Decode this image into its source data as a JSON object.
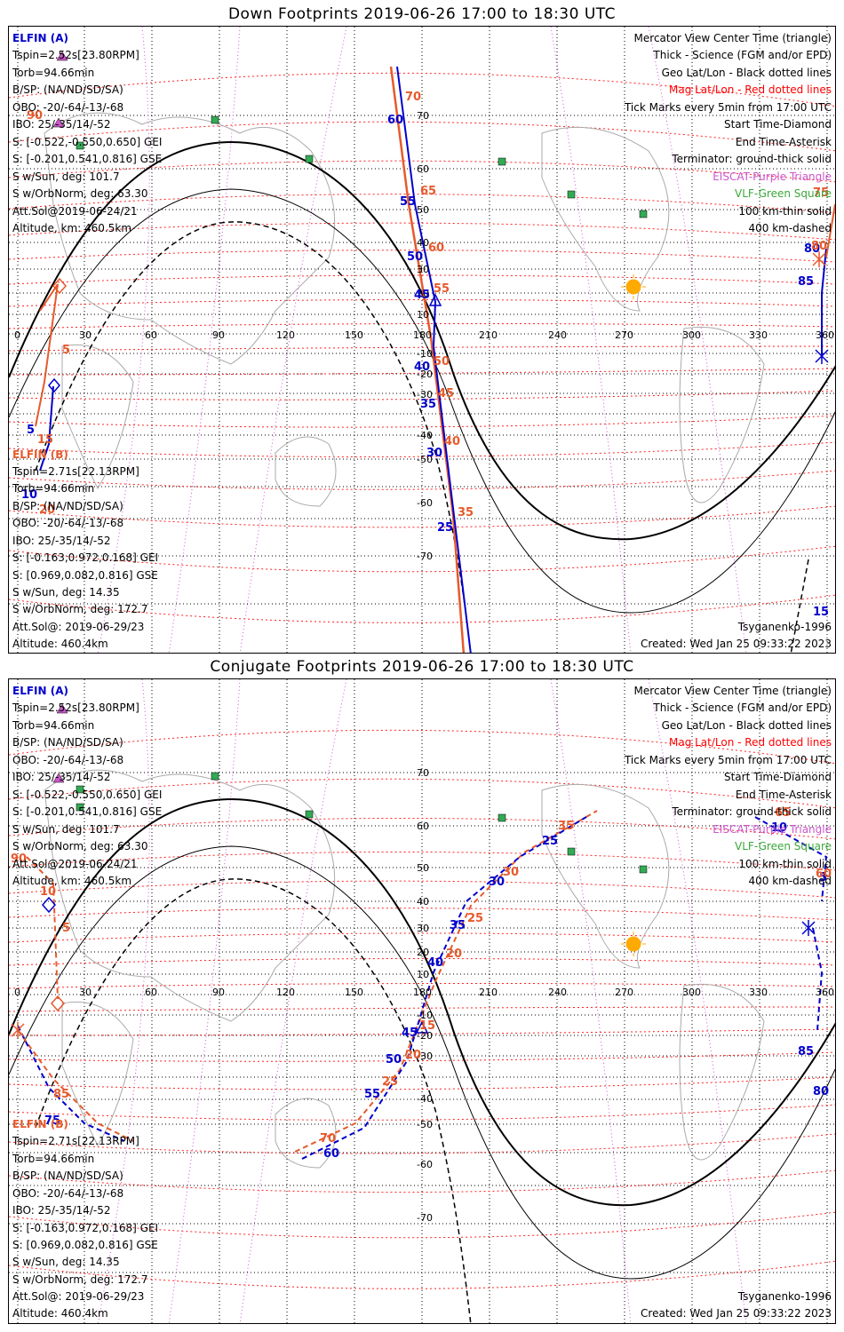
{
  "panels": [
    {
      "title": "Down Footprints 2019-06-26 17:00 to 18:30 UTC",
      "elfin_a": {
        "name": "ELFIN (A)",
        "lines": [
          "Tspin=2.52s[23.80RPM]",
          "Torb=94.66min",
          "B/SP: (NA/ND/SD/SA)",
          "OBO: -20/-64/-13/-68",
          "IBO: 25/-35/14/-52",
          "S: [-0.522,-0.550,0.650] GEI",
          "S: [-0.201,0.541,0.816] GSE",
          "S w/Sun, deg: 101.7",
          "S w/OrbNorm, deg: 63.30",
          "Att.Sol@2019-06-24/21",
          "Altitude, km: 460.5km"
        ]
      },
      "elfin_b": {
        "name": "ELFIN (B)",
        "lines": [
          "Tspin=2.71s[22.13RPM]",
          "Torb=94.66min",
          "B/SP: (NA/ND/SD/SA)",
          "OBO: -20/-64/-13/-68",
          "IBO: 25/-35/14/-52",
          "S: [-0.163,0.972,0.168] GEI",
          "S: [0.969,0.082,0.816] GSE",
          "S w/Sun, deg: 14.35",
          "S w/OrbNorm, deg: 172.7",
          "Att.Sol@: 2019-06-29/23",
          "Altitude: 460.4km"
        ]
      }
    },
    {
      "title": "Conjugate Footprints 2019-06-26 17:00 to 18:30 UTC",
      "elfin_a": {
        "name": "ELFIN (A)",
        "lines": [
          "Tspin=2.52s[23.80RPM]",
          "Torb=94.66min",
          "B/SP: (NA/ND/SD/SA)",
          "OBO: -20/-64/-13/-68",
          "IBO: 25/-35/14/-52",
          "S: [-0.522,-0.550,0.650] GEI",
          "S: [-0.201,0.541,0.816] GSE",
          "S w/Sun, deg: 101.7",
          "S w/OrbNorm, deg: 63.30",
          "Att.Sol@2019-06-24/21",
          "Altitude, km: 460.5km"
        ]
      },
      "elfin_b": {
        "name": "ELFIN (B)",
        "lines": [
          "Tspin=2.71s[22.13RPM]",
          "Torb=94.66min",
          "B/SP: (NA/ND/SD/SA)",
          "OBO: -20/-64/-13/-68",
          "IBO: 25/-35/14/-52",
          "S: [-0.163,0.972,0.168] GEI",
          "S: [0.969,0.082,0.816] GSE",
          "S w/Sun, deg: 14.35",
          "S w/OrbNorm, deg: 172.7",
          "Att.Sol@: 2019-06-29/23",
          "Altitude: 460.4km"
        ]
      }
    }
  ],
  "legend": {
    "view": "Mercator View Center Time (triangle)",
    "thick": "Thick - Science (FGM and/or EPD)",
    "geo": "Geo Lat/Lon - Black dotted lines",
    "mag": "Mag Lat/Lon - Red dotted lines",
    "ticks": "Tick Marks every 5min from 17:00 UTC",
    "start": "Start Time-Diamond",
    "end": "End Time-Asterisk",
    "terminator": "Terminator: ground-thick solid",
    "eiscat": "EISCAT-Purple Triangle",
    "vlf": "VLF-Green Square",
    "km100": "100 km-thin solid",
    "km400": "400 km-dashed"
  },
  "footer": {
    "model": "Tsyganenko-1996",
    "created": "Created: Wed Jan 25 09:33:22 2023"
  },
  "axes": {
    "lon_ticks": [
      "0",
      "30",
      "60",
      "90",
      "120",
      "150",
      "180",
      "210",
      "240",
      "270",
      "300",
      "330",
      "360"
    ],
    "lat_ticks": [
      "70",
      "60",
      "50",
      "40",
      "30",
      "20",
      "10",
      "-10",
      "-20",
      "-30",
      "-40",
      "-50",
      "-60",
      "-70"
    ]
  },
  "colors": {
    "elfin_a": "#0000cc",
    "elfin_b": "#e65a2c",
    "mag_grid": "#ff0000",
    "sun": "#ffaa00",
    "vlf": "#33aa55",
    "eiscat": "#cc55cc"
  },
  "down_labels": {
    "a": [
      "60",
      "55",
      "50",
      "45",
      "40",
      "35",
      "30",
      "25",
      "5",
      "80",
      "85",
      "15",
      "10"
    ],
    "b": [
      "70",
      "65",
      "60",
      "55",
      "50",
      "45",
      "40",
      "35",
      "75",
      "80",
      "90",
      "5",
      "15",
      "20"
    ]
  },
  "conj_labels": {
    "a": [
      "25",
      "30",
      "35",
      "40",
      "45",
      "50",
      "55",
      "60",
      "10",
      "5",
      "85",
      "80",
      "75"
    ],
    "b": [
      "35",
      "30",
      "25",
      "20",
      "15",
      "20",
      "25",
      "70",
      "65",
      "60",
      "85",
      "90",
      "10",
      "5"
    ]
  }
}
